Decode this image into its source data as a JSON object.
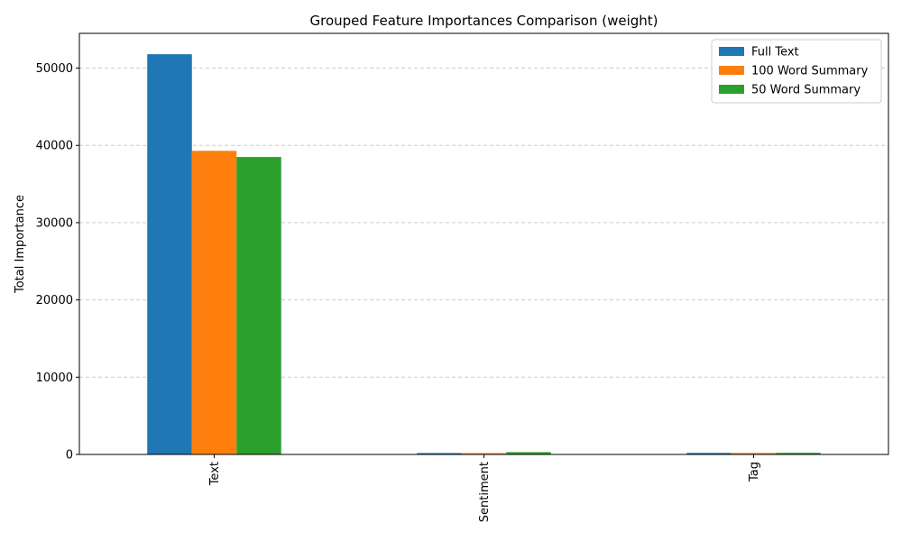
{
  "chart_data": {
    "type": "bar",
    "title": "Grouped Feature Importances Comparison (weight)",
    "xlabel": "",
    "ylabel": "Total Importance",
    "categories": [
      "Text",
      "Sentiment",
      "Tag"
    ],
    "series": [
      {
        "name": "Full Text",
        "color": "#1f77b4",
        "values": [
          51800,
          180,
          200
        ]
      },
      {
        "name": "100 Word Summary",
        "color": "#ff7f0e",
        "values": [
          39300,
          170,
          190
        ]
      },
      {
        "name": "50 Word Summary",
        "color": "#2ca02c",
        "values": [
          38500,
          300,
          210
        ]
      }
    ],
    "ylim": [
      0,
      54500
    ],
    "yticks": [
      0,
      10000,
      20000,
      30000,
      40000,
      50000
    ],
    "grid": "y-dashed",
    "legend_position": "top-right",
    "tick_label_rotation": "vertical"
  }
}
